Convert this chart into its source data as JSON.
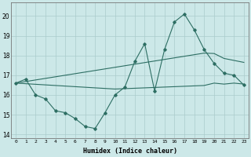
{
  "x": [
    0,
    1,
    2,
    3,
    4,
    5,
    6,
    7,
    8,
    9,
    10,
    11,
    12,
    13,
    14,
    15,
    16,
    17,
    18,
    19,
    20,
    21,
    22,
    23
  ],
  "line_jagged": [
    16.6,
    16.8,
    16.0,
    15.8,
    15.2,
    15.1,
    14.8,
    14.4,
    14.3,
    15.1,
    16.0,
    16.4,
    17.7,
    18.6,
    16.2,
    18.3,
    19.7,
    20.1,
    19.3,
    18.3,
    17.6,
    17.1,
    17.0,
    16.5
  ],
  "line_upper": [
    16.6,
    16.68,
    16.76,
    16.84,
    16.92,
    17.0,
    17.08,
    17.16,
    17.24,
    17.32,
    17.4,
    17.48,
    17.56,
    17.64,
    17.72,
    17.8,
    17.88,
    17.96,
    18.04,
    18.12,
    18.1,
    17.85,
    17.75,
    17.65
  ],
  "line_lower": [
    16.6,
    16.57,
    16.54,
    16.51,
    16.48,
    16.45,
    16.42,
    16.39,
    16.36,
    16.33,
    16.3,
    16.32,
    16.34,
    16.36,
    16.38,
    16.4,
    16.42,
    16.44,
    16.46,
    16.48,
    16.6,
    16.55,
    16.6,
    16.55
  ],
  "line_color": "#2d6e63",
  "bg_color": "#cce8e8",
  "grid_color": "#aacccc",
  "ylabel_values": [
    14,
    15,
    16,
    17,
    18,
    19,
    20
  ],
  "xlabel": "Humidex (Indice chaleur)",
  "ylim": [
    13.8,
    20.7
  ],
  "xlim": [
    -0.5,
    23.5
  ]
}
